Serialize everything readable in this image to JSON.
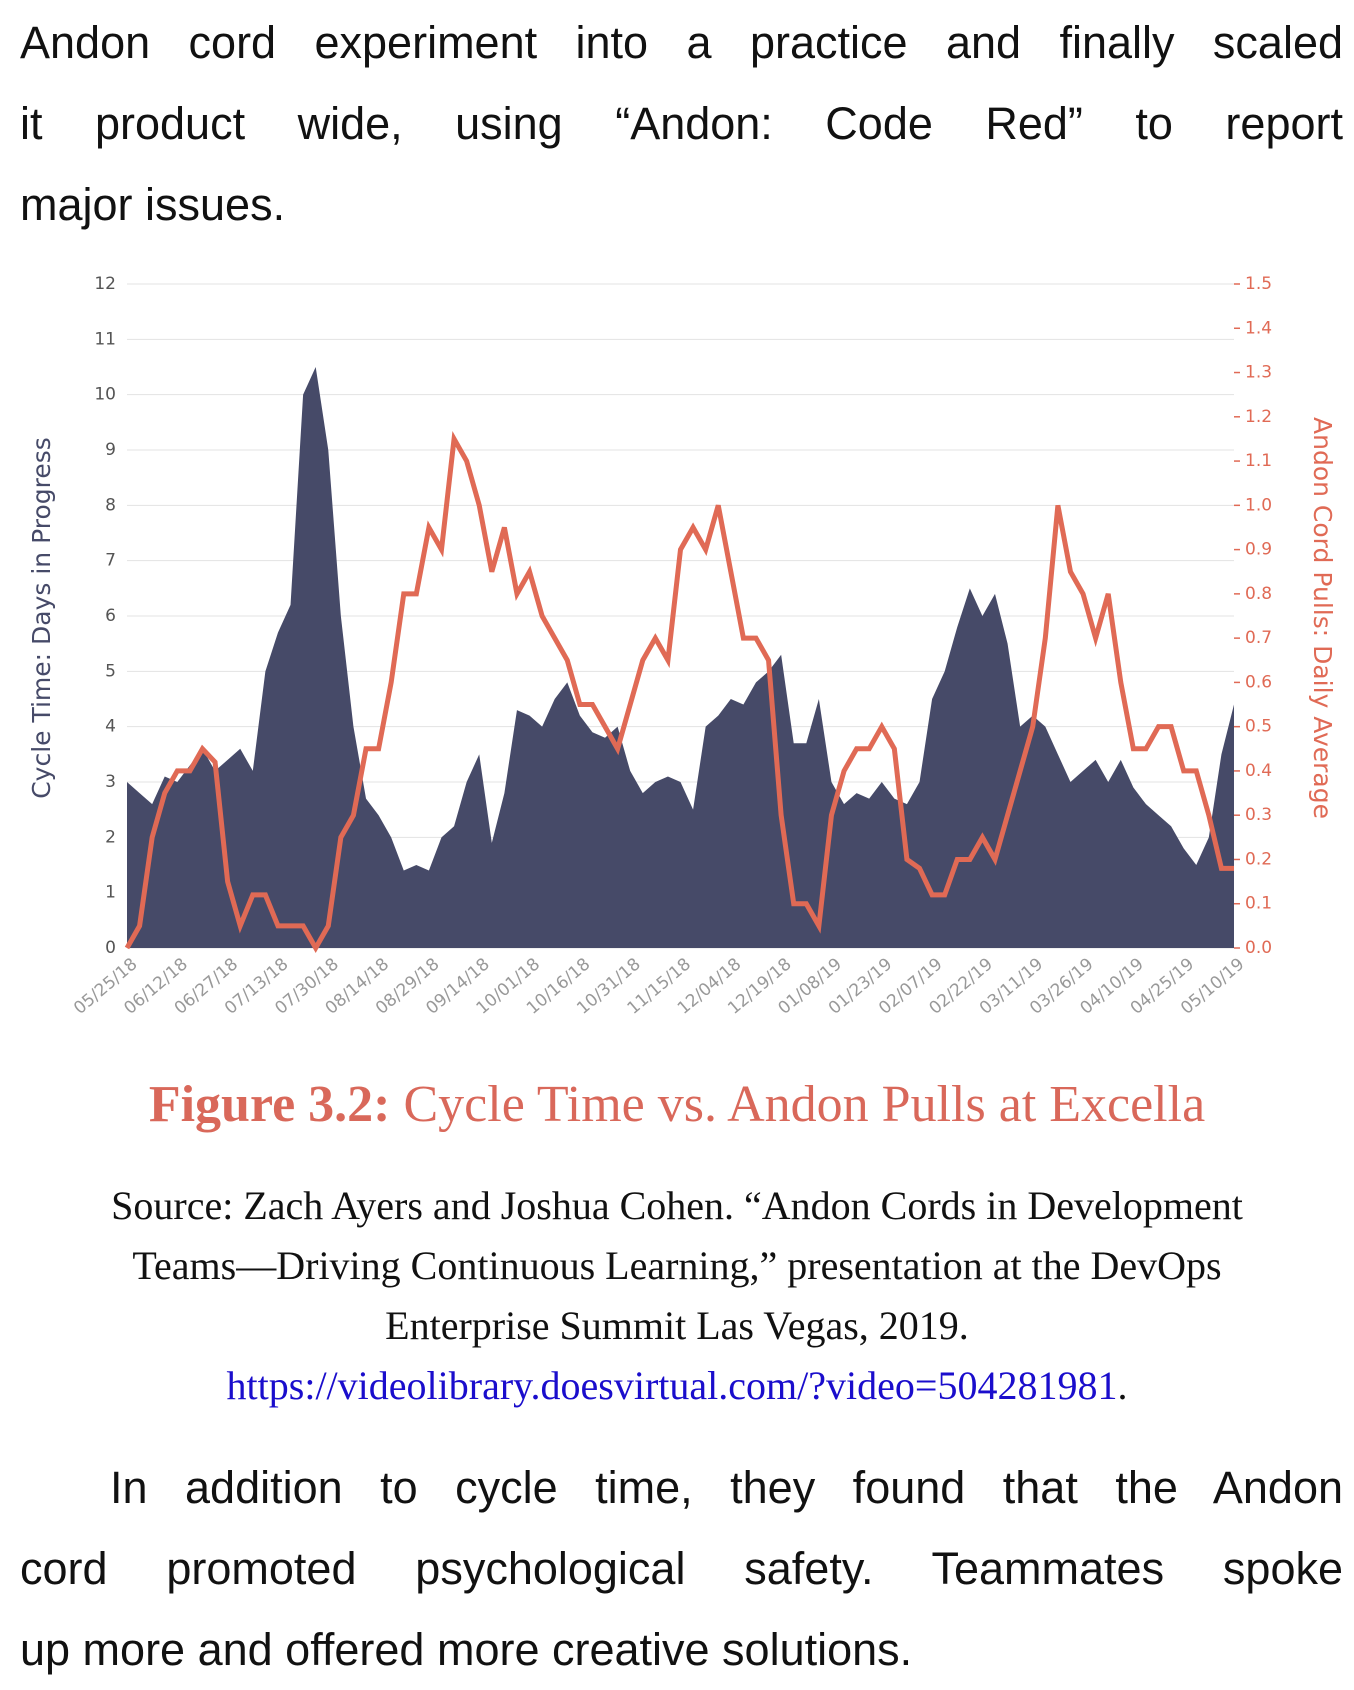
{
  "paragraph_top": {
    "lines": [
      "Andon cord experiment into a practice and finally scaled",
      "it product wide, using “Andon: Code Red” to report",
      "major issues."
    ]
  },
  "chart_data": {
    "type": "area",
    "ylabel": "Cycle Time: Days in Progress",
    "y2label": "Andon Cord Pulls: Daily Average",
    "categories": [
      "05/25/18",
      null,
      null,
      null,
      "06/12/18",
      null,
      null,
      null,
      "06/27/18",
      null,
      null,
      null,
      "07/13/18",
      null,
      null,
      null,
      "07/30/18",
      null,
      null,
      null,
      "08/14/18",
      null,
      null,
      null,
      "08/29/18",
      null,
      null,
      null,
      "09/14/18",
      null,
      null,
      null,
      "10/01/18",
      null,
      null,
      null,
      "10/16/18",
      null,
      null,
      null,
      "10/31/18",
      null,
      null,
      null,
      "11/15/18",
      null,
      null,
      null,
      "12/04/18",
      null,
      null,
      null,
      "12/19/18",
      null,
      null,
      null,
      "01/08/19",
      null,
      null,
      null,
      "01/23/19",
      null,
      null,
      null,
      "02/07/19",
      null,
      null,
      null,
      "02/22/19",
      null,
      null,
      null,
      "03/11/19",
      null,
      null,
      null,
      "03/26/19",
      null,
      null,
      null,
      "04/10/19",
      null,
      null,
      null,
      "04/25/19",
      null,
      null,
      null,
      "05/10/19"
    ],
    "series": [
      {
        "type": "area",
        "color": "#464a68",
        "values": [
          3.0,
          2.8,
          2.6,
          3.1,
          3.0,
          3.3,
          3.6,
          3.2,
          3.4,
          3.6,
          3.2,
          5.0,
          5.7,
          6.2,
          10.0,
          10.5,
          9.0,
          6.0,
          4.0,
          2.7,
          2.4,
          2.0,
          1.4,
          1.5,
          1.4,
          2.0,
          2.2,
          3.0,
          3.5,
          1.9,
          2.8,
          4.3,
          4.2,
          4.0,
          4.5,
          4.8,
          4.2,
          3.9,
          3.8,
          4.0,
          3.2,
          2.8,
          3.0,
          3.1,
          3.0,
          2.5,
          4.0,
          4.2,
          4.5,
          4.4,
          4.8,
          5.0,
          5.3,
          3.7,
          3.7,
          4.5,
          3.0,
          2.6,
          2.8,
          2.7,
          3.0,
          2.7,
          2.6,
          3.0,
          4.5,
          5.0,
          5.8,
          6.5,
          6.0,
          6.4,
          5.5,
          4.0,
          4.2,
          4.0,
          3.5,
          3.0,
          3.2,
          3.4,
          3.0,
          3.4,
          2.9,
          2.6,
          2.4,
          2.2,
          1.8,
          1.5,
          2.0,
          3.5,
          4.4
        ]
      },
      {
        "type": "line",
        "axis": "y2",
        "color": "#e06a55",
        "values": [
          0.0,
          0.05,
          0.25,
          0.35,
          0.4,
          0.4,
          0.45,
          0.42,
          0.15,
          0.05,
          0.12,
          0.12,
          0.05,
          0.05,
          0.05,
          0.0,
          0.05,
          0.25,
          0.3,
          0.45,
          0.45,
          0.6,
          0.8,
          0.8,
          0.95,
          0.9,
          1.15,
          1.1,
          1.0,
          0.85,
          0.95,
          0.8,
          0.85,
          0.75,
          0.7,
          0.65,
          0.55,
          0.55,
          0.5,
          0.45,
          0.55,
          0.65,
          0.7,
          0.65,
          0.9,
          0.95,
          0.9,
          1.0,
          0.85,
          0.7,
          0.7,
          0.65,
          0.3,
          0.1,
          0.1,
          0.05,
          0.3,
          0.4,
          0.45,
          0.45,
          0.5,
          0.45,
          0.2,
          0.18,
          0.12,
          0.12,
          0.2,
          0.2,
          0.25,
          0.2,
          0.3,
          0.4,
          0.5,
          0.7,
          1.0,
          0.85,
          0.8,
          0.7,
          0.8,
          0.6,
          0.45,
          0.45,
          0.5,
          0.5,
          0.4,
          0.4,
          0.3,
          0.18,
          0.18
        ]
      }
    ],
    "ylim": [
      0,
      12
    ],
    "yticks": [
      0,
      1,
      2,
      3,
      4,
      5,
      6,
      7,
      8,
      9,
      10,
      11,
      12
    ],
    "y2lim": [
      0,
      1.5
    ],
    "y2ticks": [
      {
        "value": 0,
        "label": "0.0"
      },
      0.1,
      0.2,
      0.3,
      0.4,
      0.5,
      0.6,
      0.7,
      0.8,
      0.9,
      {
        "value": 1,
        "label": "1.0"
      },
      1.1,
      1.2,
      1.3,
      1.4,
      1.5
    ],
    "grid": true
  },
  "figure": {
    "label": "Figure 3.2:",
    "title": "Cycle Time vs. Andon Pulls at Excella"
  },
  "source": {
    "lines": [
      "Source: Zach Ayers and Joshua Cohen. “Andon Cords in Development",
      "Teams—Driving Continuous Learning,” presentation at the DevOps",
      "Enterprise Summit Las Vegas, 2019."
    ],
    "link": "https://videolibrary.doesvirtual.com/?video=504281981",
    "link_end": "."
  },
  "paragraph_bottom": {
    "lines": [
      "In addition to cycle time, they found that the Andon",
      "cord promoted psychological safety. Teammates spoke",
      "up more and offered more creative solutions."
    ]
  }
}
